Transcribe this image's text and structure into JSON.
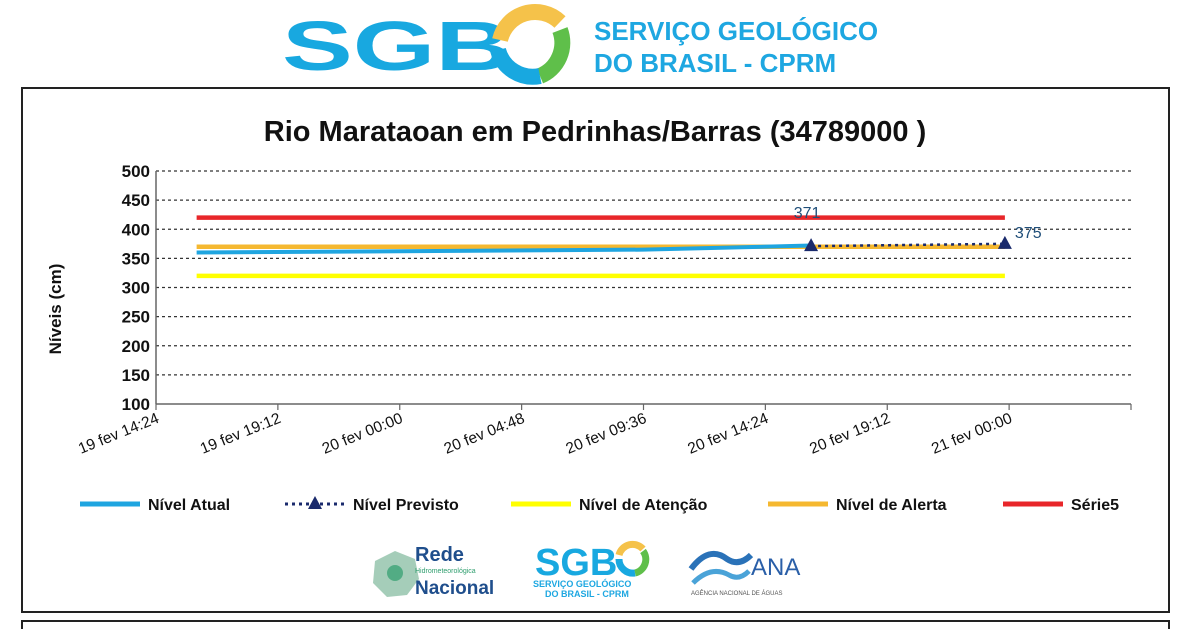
{
  "header": {
    "brand": "SGB",
    "org_line1": "SERVIÇO GEOLÓGICO",
    "org_line2": "DO BRASIL - CPRM",
    "colors": {
      "brand_blue": "#18a8e0",
      "brand_green": "#5fbf4a",
      "brand_yellow": "#f5c24a",
      "org_text": "#1ea7e1"
    }
  },
  "footer_logos": {
    "rede": {
      "line1": "Rede",
      "line2": "Hidrometeorológica",
      "line3": "Nacional",
      "icon": "rede-map-icon"
    },
    "sgb": {
      "brand": "SGB",
      "line1": "SERVIÇO GEOLÓGICO",
      "line2": "DO BRASIL - CPRM",
      "icon": "sgb-logo-icon"
    },
    "ana": {
      "name": "ANA",
      "subtitle": "AGÊNCIA NACIONAL DE ÁGUAS",
      "icon": "ana-wave-icon"
    }
  },
  "chart_data": {
    "type": "line",
    "title": "Rio Marataoan em Pedrinhas/Barras (34789000 )",
    "ylabel": "Níveis  (cm)",
    "xlabel": "",
    "ylim": [
      100,
      500
    ],
    "yticks": [
      "500",
      "450",
      "400",
      "350",
      "300",
      "250",
      "200",
      "150",
      "100"
    ],
    "xlim": [
      "2019-02-19T14:24",
      "2019-02-21T04:48"
    ],
    "xticks": [
      "19 fev 14:24",
      "19 fev 19:12",
      "20 fev 00:00",
      "20 fev 04:48",
      "20 fev 09:36",
      "20 fev 14:24",
      "20 fev 19:12",
      "21 fev 00:00"
    ],
    "grid": true,
    "legend_position": "bottom",
    "series": [
      {
        "name": "Nível Atual",
        "color": "#1fa5e0",
        "style": "solid",
        "x": [
          "2019-02-19T16:00",
          "2019-02-20T09:36",
          "2019-02-20T16:12"
        ],
        "y": [
          360,
          365,
          372
        ]
      },
      {
        "name": "Nível Previsto",
        "color": "#1a2a6c",
        "style": "dotted",
        "marker": "triangle",
        "x": [
          "2019-02-20T16:12",
          "2019-02-20T23:50"
        ],
        "y": [
          371,
          375
        ],
        "labels": [
          "371",
          "375"
        ]
      },
      {
        "name": "Nível de Atenção",
        "color": "#ffff00",
        "style": "solid",
        "x": [
          "2019-02-19T16:00",
          "2019-02-20T23:50"
        ],
        "y": [
          320,
          320
        ]
      },
      {
        "name": "Nível de Alerta",
        "color": "#f5b830",
        "style": "solid",
        "x": [
          "2019-02-19T16:00",
          "2019-02-20T23:50"
        ],
        "y": [
          370,
          370
        ]
      },
      {
        "name": "Série5",
        "color": "#e8262a",
        "style": "solid",
        "x": [
          "2019-02-19T16:00",
          "2019-02-20T23:50"
        ],
        "y": [
          420,
          420
        ]
      }
    ]
  }
}
